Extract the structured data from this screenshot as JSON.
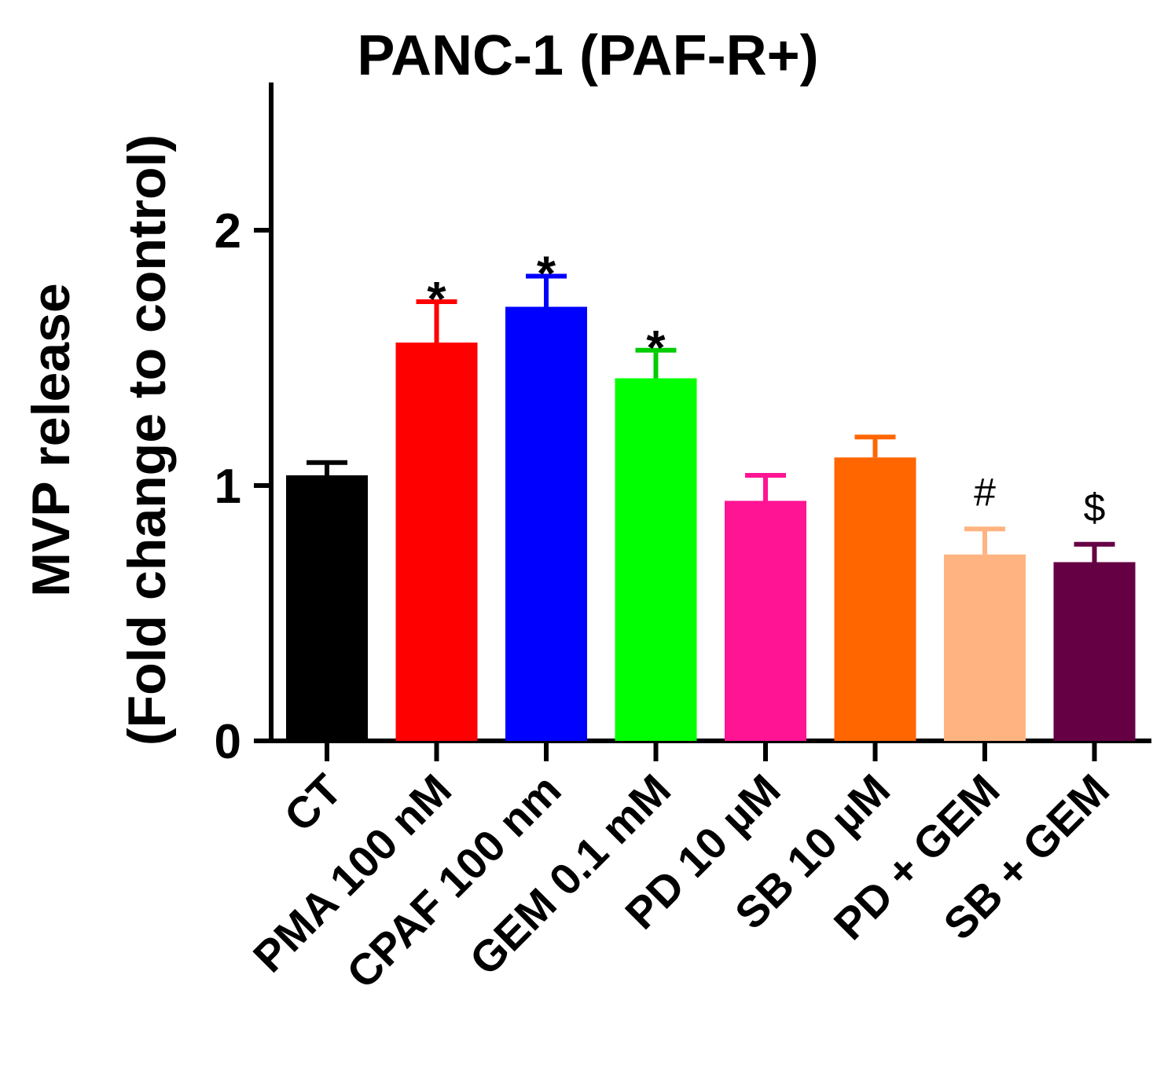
{
  "chart_data": {
    "type": "bar",
    "title": "PANC-1 (PAF-R+)",
    "ylabel_line1": "MVP release",
    "ylabel_line2": "(Fold change to control)",
    "xlabel": "",
    "ylim": [
      0,
      2.5
    ],
    "yticks": [
      0,
      1,
      2
    ],
    "ytick_labels": [
      "0",
      "1",
      "2"
    ],
    "categories": [
      "CT",
      "PMA 100 nM",
      "CPAF 100 nm",
      "GEM 0.1 mM",
      "PD 10 µM",
      "SB 10 µM",
      "PD + GEM",
      "SB + GEM"
    ],
    "values": [
      1.04,
      1.56,
      1.7,
      1.42,
      0.94,
      1.11,
      0.73,
      0.7
    ],
    "errors": [
      0.05,
      0.16,
      0.12,
      0.11,
      0.1,
      0.08,
      0.1,
      0.07
    ],
    "annotations": [
      "",
      "*",
      "*",
      "*",
      "",
      "",
      "#",
      "$"
    ],
    "colors": [
      "#000000",
      "#ff0000",
      "#0000ff",
      "#00ff00",
      "#ff1493",
      "#ff6600",
      "#ffb380",
      "#660044"
    ],
    "error_bar_colors": [
      "#000000",
      "#ff0000",
      "#0000ff",
      "#00cc00",
      "#ff1493",
      "#ff6600",
      "#ffb380",
      "#660044"
    ],
    "grid": false,
    "legend": "none"
  }
}
